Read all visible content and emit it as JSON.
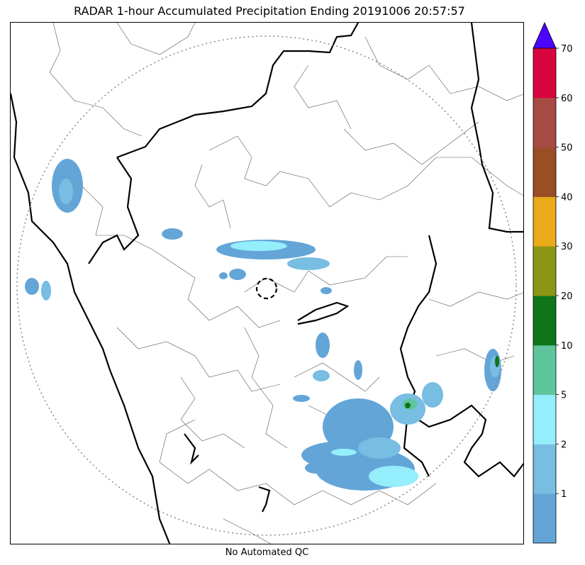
{
  "title": "RADAR 1-hour Accumulated Precipitation Ending 20191006 20:57:57",
  "footer": "No Automated QC",
  "colorbar": {
    "bins": [
      {
        "from": 0,
        "color": "#64a5d8"
      },
      {
        "from": 1,
        "color": "#78bde2"
      },
      {
        "from": 2,
        "color": "#94eefc"
      },
      {
        "from": 5,
        "color": "#5ec59d"
      },
      {
        "from": 10,
        "color": "#0f7519"
      },
      {
        "from": 20,
        "color": "#8c9514"
      },
      {
        "from": 30,
        "color": "#eaaa1a"
      },
      {
        "from": 40,
        "color": "#9a4e26"
      },
      {
        "from": 50,
        "color": "#a84a44"
      },
      {
        "from": 60,
        "color": "#d8043e"
      }
    ],
    "over_color": "#4b05fd",
    "tick_labels": [
      "1",
      "2",
      "5",
      "10",
      "20",
      "30",
      "40",
      "50",
      "60",
      "70"
    ]
  },
  "legend_colors": {
    "boundary_state": "#000000",
    "boundary_district": "#555555",
    "range_ring": "#888888"
  }
}
